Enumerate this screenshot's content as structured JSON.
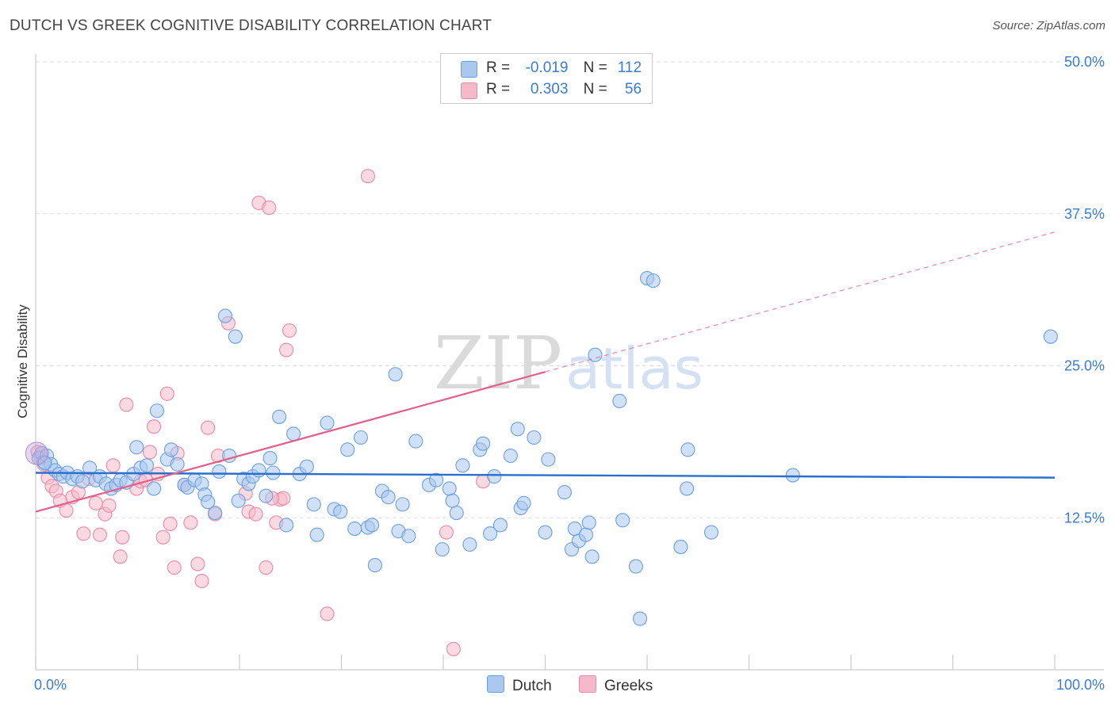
{
  "title": "DUTCH VS GREEK COGNITIVE DISABILITY CORRELATION CHART",
  "source": "Source: ZipAtlas.com",
  "watermark": {
    "zip": "ZIP",
    "atlas": "atlas"
  },
  "legend": {
    "dutch": {
      "r_label": "R =",
      "r_value": "-0.019",
      "n_label": "N =",
      "n_value": "112",
      "color": "#a9c7ef",
      "stroke": "#6b9fe0"
    },
    "greeks": {
      "r_label": "R =",
      "r_value": "0.303",
      "n_label": "N =",
      "n_value": "56",
      "color": "#f6b9cb",
      "stroke": "#ea89a7"
    }
  },
  "bottom_legend": {
    "dutch": "Dutch",
    "greeks": "Greeks"
  },
  "chart_data": {
    "type": "scatter",
    "title": "DUTCH VS GREEK COGNITIVE DISABILITY CORRELATION CHART",
    "xlabel": "",
    "ylabel": "Cognitive Disability",
    "xlim": [
      0,
      100
    ],
    "ylim": [
      0,
      50
    ],
    "x_tick_labels": [
      "0.0%",
      "100.0%"
    ],
    "y_ticks": [
      12.5,
      25.0,
      37.5,
      50.0
    ],
    "y_tick_labels": [
      "12.5%",
      "25.0%",
      "37.5%",
      "50.0%"
    ],
    "grid": true,
    "legend_position": "top-center",
    "series": [
      {
        "name": "Dutch",
        "color": "#a9c7ef",
        "stroke": "#6b9fe0",
        "trend": {
          "x0": 0,
          "y0": 16.2,
          "x1": 100,
          "y1": 15.8,
          "color": "#2a6fce"
        },
        "points": [
          [
            0.3,
            17.4
          ],
          [
            0.6,
            17.8
          ],
          [
            0.8,
            17.1
          ],
          [
            1.1,
            17.6
          ],
          [
            1.5,
            16.9
          ],
          [
            1.9,
            16.4
          ],
          [
            2.3,
            16.1
          ],
          [
            2.7,
            15.9
          ],
          [
            3.1,
            16.2
          ],
          [
            3.6,
            15.7
          ],
          [
            4.1,
            15.9
          ],
          [
            4.6,
            15.5
          ],
          [
            5.3,
            16.6
          ],
          [
            5.9,
            15.6
          ],
          [
            6.3,
            15.9
          ],
          [
            6.9,
            15.3
          ],
          [
            7.4,
            14.9
          ],
          [
            7.9,
            15.2
          ],
          [
            8.3,
            15.6
          ],
          [
            8.9,
            15.4
          ],
          [
            9.6,
            16.1
          ],
          [
            9.9,
            18.3
          ],
          [
            10.3,
            16.6
          ],
          [
            10.9,
            16.8
          ],
          [
            11.6,
            14.9
          ],
          [
            11.9,
            21.3
          ],
          [
            12.9,
            17.3
          ],
          [
            13.3,
            18.1
          ],
          [
            13.9,
            16.9
          ],
          [
            14.6,
            15.2
          ],
          [
            14.9,
            15.0
          ],
          [
            15.6,
            15.6
          ],
          [
            16.3,
            15.3
          ],
          [
            16.6,
            14.4
          ],
          [
            16.9,
            13.8
          ],
          [
            17.6,
            12.9
          ],
          [
            18.0,
            16.3
          ],
          [
            18.6,
            29.1
          ],
          [
            19.0,
            17.6
          ],
          [
            19.6,
            27.4
          ],
          [
            19.9,
            13.9
          ],
          [
            20.4,
            15.7
          ],
          [
            20.9,
            15.3
          ],
          [
            21.3,
            15.9
          ],
          [
            21.9,
            16.4
          ],
          [
            22.6,
            14.3
          ],
          [
            23.0,
            17.4
          ],
          [
            23.3,
            16.2
          ],
          [
            23.9,
            20.8
          ],
          [
            24.6,
            11.9
          ],
          [
            25.3,
            19.4
          ],
          [
            25.9,
            16.1
          ],
          [
            26.6,
            16.7
          ],
          [
            27.3,
            13.6
          ],
          [
            27.6,
            11.1
          ],
          [
            28.6,
            20.3
          ],
          [
            29.3,
            13.2
          ],
          [
            29.9,
            13.0
          ],
          [
            30.6,
            18.1
          ],
          [
            31.3,
            11.6
          ],
          [
            31.9,
            19.1
          ],
          [
            32.6,
            11.7
          ],
          [
            33.0,
            11.9
          ],
          [
            33.3,
            8.6
          ],
          [
            34.0,
            14.7
          ],
          [
            34.6,
            14.2
          ],
          [
            35.3,
            24.3
          ],
          [
            35.6,
            11.4
          ],
          [
            36.0,
            13.6
          ],
          [
            36.6,
            11.0
          ],
          [
            37.3,
            18.8
          ],
          [
            38.6,
            15.2
          ],
          [
            39.3,
            15.6
          ],
          [
            39.9,
            9.9
          ],
          [
            40.6,
            14.9
          ],
          [
            40.9,
            13.9
          ],
          [
            41.3,
            12.9
          ],
          [
            41.9,
            16.8
          ],
          [
            42.6,
            10.3
          ],
          [
            43.6,
            18.1
          ],
          [
            43.9,
            18.6
          ],
          [
            44.6,
            11.2
          ],
          [
            45.0,
            15.9
          ],
          [
            45.6,
            11.9
          ],
          [
            46.6,
            17.6
          ],
          [
            47.3,
            19.8
          ],
          [
            47.6,
            13.3
          ],
          [
            47.9,
            13.7
          ],
          [
            48.9,
            19.1
          ],
          [
            50.0,
            11.3
          ],
          [
            50.3,
            17.3
          ],
          [
            51.9,
            14.6
          ],
          [
            52.6,
            9.9
          ],
          [
            52.9,
            11.6
          ],
          [
            53.3,
            10.6
          ],
          [
            54.0,
            11.1
          ],
          [
            54.3,
            12.1
          ],
          [
            54.6,
            9.3
          ],
          [
            54.9,
            25.9
          ],
          [
            57.3,
            22.1
          ],
          [
            57.6,
            12.3
          ],
          [
            58.9,
            8.5
          ],
          [
            59.3,
            4.2
          ],
          [
            60.0,
            32.2
          ],
          [
            60.6,
            32.0
          ],
          [
            63.3,
            10.1
          ],
          [
            63.9,
            14.9
          ],
          [
            64.0,
            18.1
          ],
          [
            66.3,
            11.3
          ],
          [
            74.3,
            16.0
          ],
          [
            99.6,
            27.4
          ],
          [
            0.9,
            17.0
          ]
        ]
      },
      {
        "name": "Greeks",
        "color": "#f6b9cb",
        "stroke": "#ea89a7",
        "trend": {
          "x0": 0,
          "y0": 13.0,
          "x1": 50,
          "y1": 24.5,
          "x2": 100,
          "y2": 36.0,
          "color": "#e2608a"
        },
        "points": [
          [
            0.2,
            17.9
          ],
          [
            0.5,
            17.5
          ],
          [
            0.8,
            16.9
          ],
          [
            1.2,
            15.8
          ],
          [
            1.6,
            15.1
          ],
          [
            2.0,
            14.7
          ],
          [
            2.4,
            13.9
          ],
          [
            3.0,
            13.1
          ],
          [
            3.6,
            14.2
          ],
          [
            4.2,
            14.6
          ],
          [
            4.7,
            11.2
          ],
          [
            5.2,
            15.7
          ],
          [
            5.9,
            13.7
          ],
          [
            6.3,
            11.1
          ],
          [
            6.8,
            12.8
          ],
          [
            7.2,
            13.5
          ],
          [
            7.6,
            16.8
          ],
          [
            8.3,
            9.3
          ],
          [
            8.5,
            10.9
          ],
          [
            8.9,
            21.8
          ],
          [
            9.9,
            14.9
          ],
          [
            10.3,
            15.5
          ],
          [
            10.8,
            15.6
          ],
          [
            11.2,
            17.9
          ],
          [
            11.6,
            20.0
          ],
          [
            12.0,
            16.1
          ],
          [
            12.9,
            22.7
          ],
          [
            12.5,
            10.9
          ],
          [
            13.2,
            12.0
          ],
          [
            13.9,
            17.8
          ],
          [
            13.6,
            8.4
          ],
          [
            14.6,
            15.2
          ],
          [
            15.2,
            12.1
          ],
          [
            15.9,
            8.7
          ],
          [
            16.3,
            7.3
          ],
          [
            16.9,
            19.9
          ],
          [
            17.6,
            12.8
          ],
          [
            17.9,
            17.6
          ],
          [
            18.9,
            28.5
          ],
          [
            20.6,
            14.5
          ],
          [
            20.9,
            13.0
          ],
          [
            21.6,
            12.8
          ],
          [
            21.9,
            38.4
          ],
          [
            22.9,
            38.0
          ],
          [
            22.6,
            8.4
          ],
          [
            23.6,
            12.1
          ],
          [
            24.0,
            14.0
          ],
          [
            24.3,
            14.1
          ],
          [
            24.6,
            26.3
          ],
          [
            24.9,
            27.9
          ],
          [
            28.6,
            4.6
          ],
          [
            32.6,
            40.6
          ],
          [
            40.3,
            11.3
          ],
          [
            41.0,
            1.7
          ],
          [
            43.9,
            15.5
          ],
          [
            23.2,
            14.1
          ]
        ]
      }
    ]
  }
}
